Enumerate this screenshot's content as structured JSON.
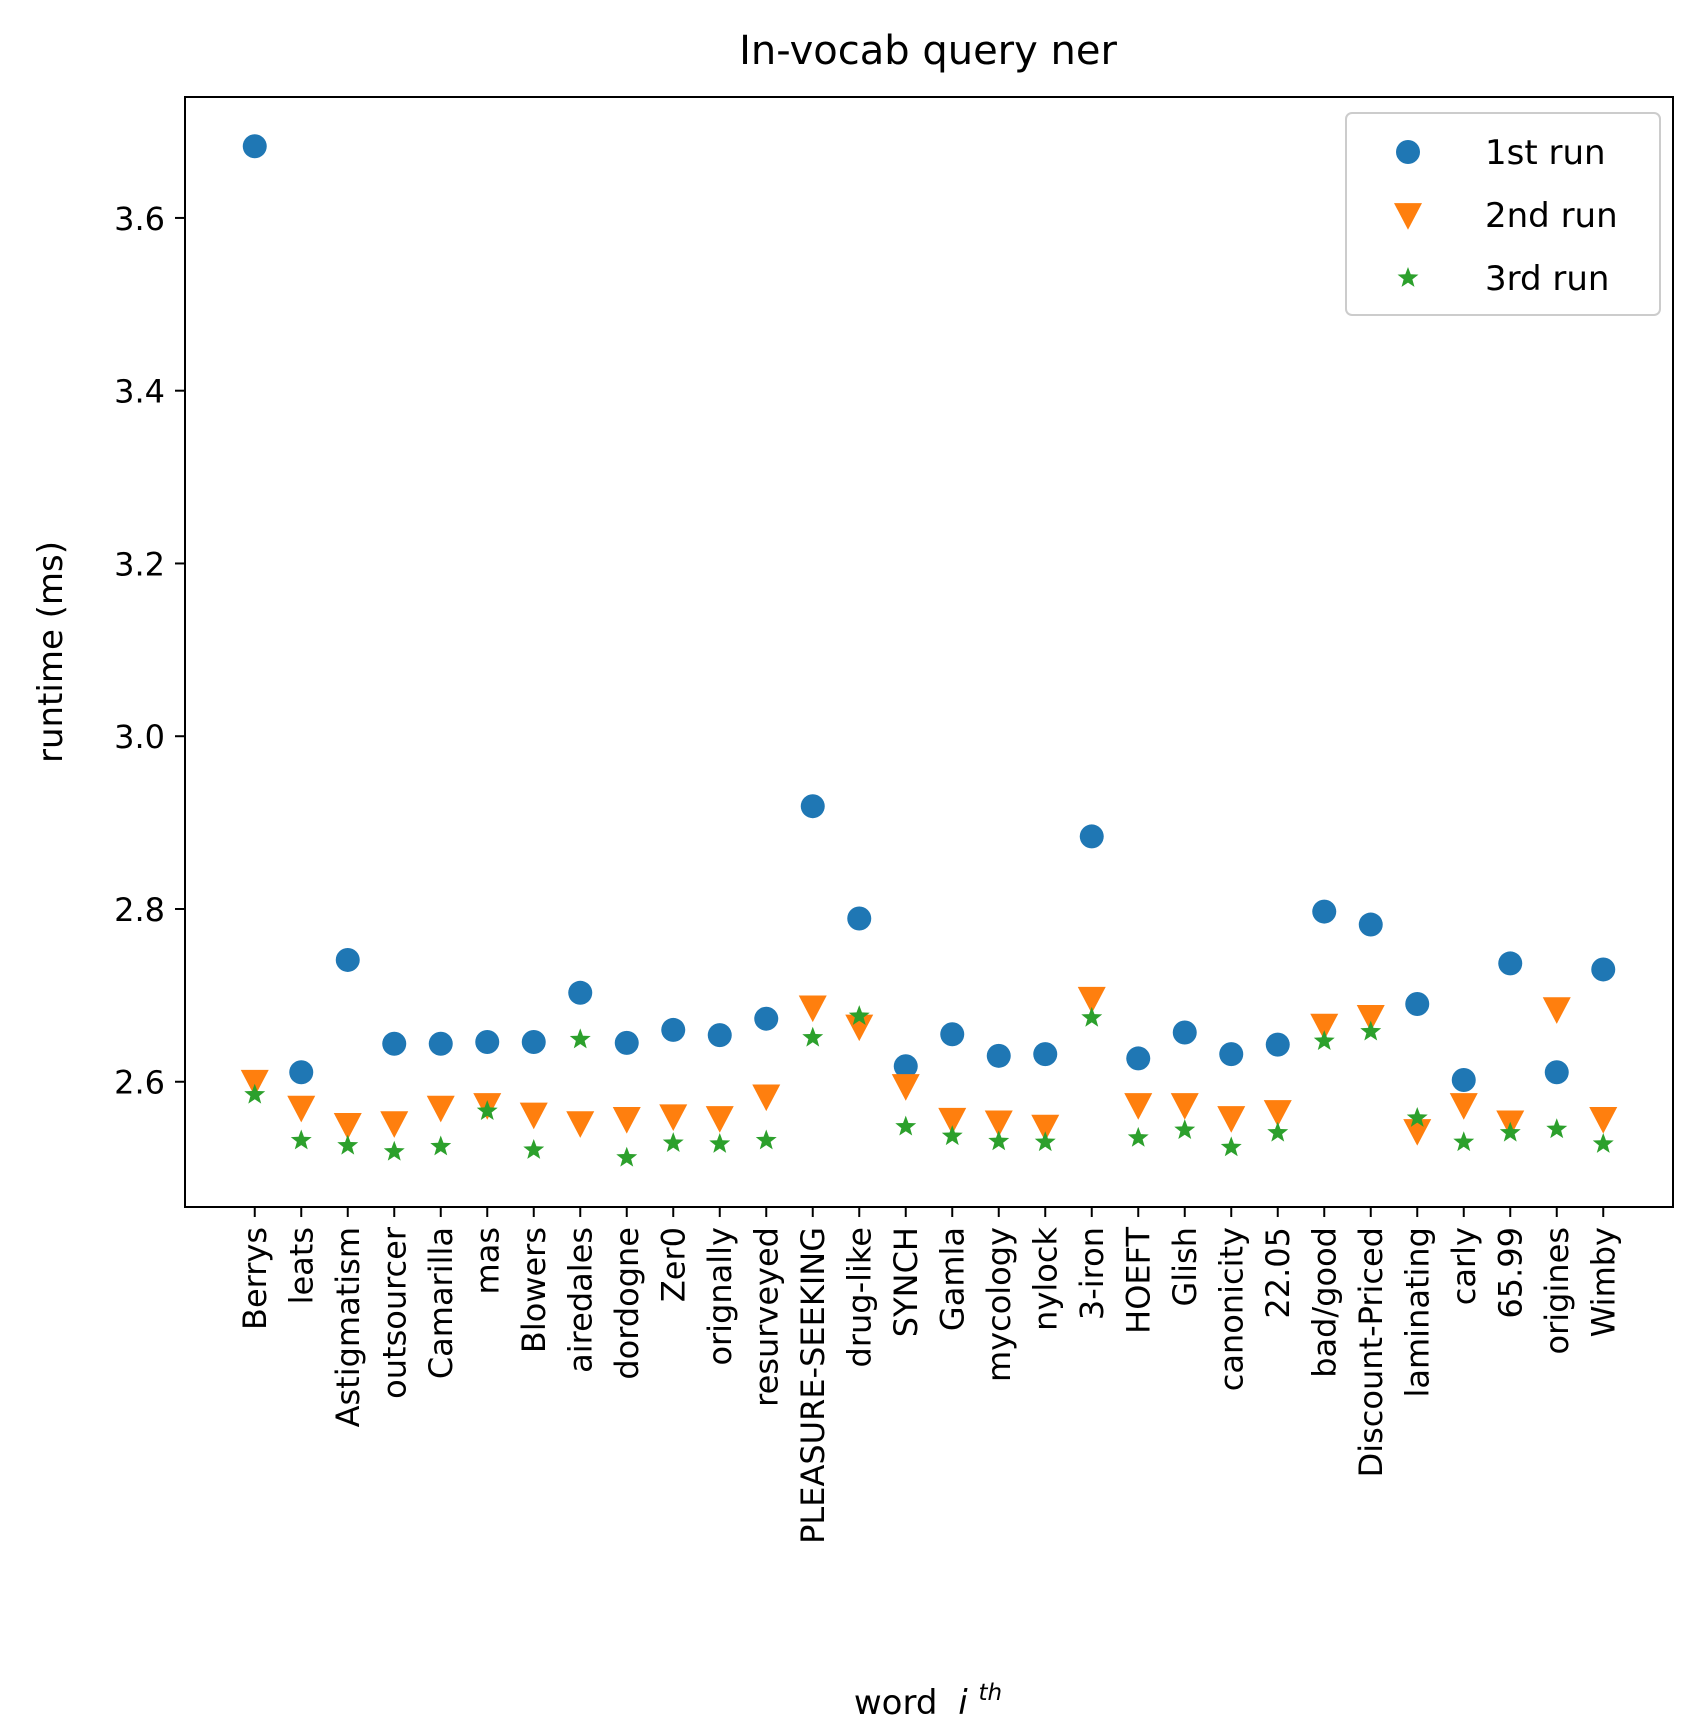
{
  "chart_data": {
    "type": "scatter",
    "title": "In-vocab query ner",
    "xlabel": "word",
    "xlabel_superscript": "th",
    "xlabel_italic": "i",
    "ylabel": "runtime (ms)",
    "ylim": [
      2.455,
      3.74
    ],
    "yticks": [
      "2.6",
      "2.8",
      "3.0",
      "3.2",
      "3.4",
      "3.6"
    ],
    "ytick_values": [
      2.6,
      2.8,
      3.0,
      3.2,
      3.4,
      3.6
    ],
    "grid": false,
    "legend_position": "top-right",
    "categories": [
      "Berrys",
      "leats",
      "Astigmatism",
      "outsourcer",
      "Camarilla",
      "mas",
      "Blowers",
      "airedales",
      "dordogne",
      "Zer0",
      "orignally",
      "resurveyed",
      "PLEASURE-SEEKING",
      "drug-like",
      "SYNCH",
      "Gamla",
      "mycology",
      "nylock",
      "3-iron",
      "HOEFT",
      "Glish",
      "canonicity",
      "22.05",
      "bad/good",
      "Discount-Priced",
      "laminating",
      "carly",
      "65.99",
      "origines",
      "Wimby"
    ],
    "series": [
      {
        "name": "1st run",
        "marker": "circle",
        "color": "#1f77b4",
        "values": [
          3.683,
          2.611,
          2.741,
          2.644,
          2.644,
          2.646,
          2.646,
          2.703,
          2.645,
          2.66,
          2.654,
          2.673,
          2.919,
          2.789,
          2.618,
          2.655,
          2.63,
          2.632,
          2.884,
          2.627,
          2.657,
          2.632,
          2.643,
          2.797,
          2.782,
          2.69,
          2.602,
          2.737,
          2.611,
          2.73
        ]
      },
      {
        "name": "2nd run",
        "marker": "triangle_down",
        "color": "#ff7f0e",
        "values": [
          2.6,
          2.57,
          2.55,
          2.552,
          2.57,
          2.573,
          2.562,
          2.552,
          2.557,
          2.56,
          2.558,
          2.583,
          2.686,
          2.664,
          2.595,
          2.556,
          2.553,
          2.548,
          2.696,
          2.573,
          2.573,
          2.558,
          2.565,
          2.665,
          2.675,
          2.543,
          2.573,
          2.553,
          2.684,
          2.557
        ]
      },
      {
        "name": "3rd run",
        "marker": "star",
        "color": "#2ca02c",
        "values": [
          2.585,
          2.532,
          2.526,
          2.519,
          2.525,
          2.566,
          2.521,
          2.649,
          2.512,
          2.529,
          2.528,
          2.532,
          2.651,
          2.676,
          2.548,
          2.537,
          2.531,
          2.53,
          2.674,
          2.535,
          2.544,
          2.524,
          2.541,
          2.647,
          2.658,
          2.558,
          2.53,
          2.541,
          2.545,
          2.528
        ]
      }
    ]
  }
}
